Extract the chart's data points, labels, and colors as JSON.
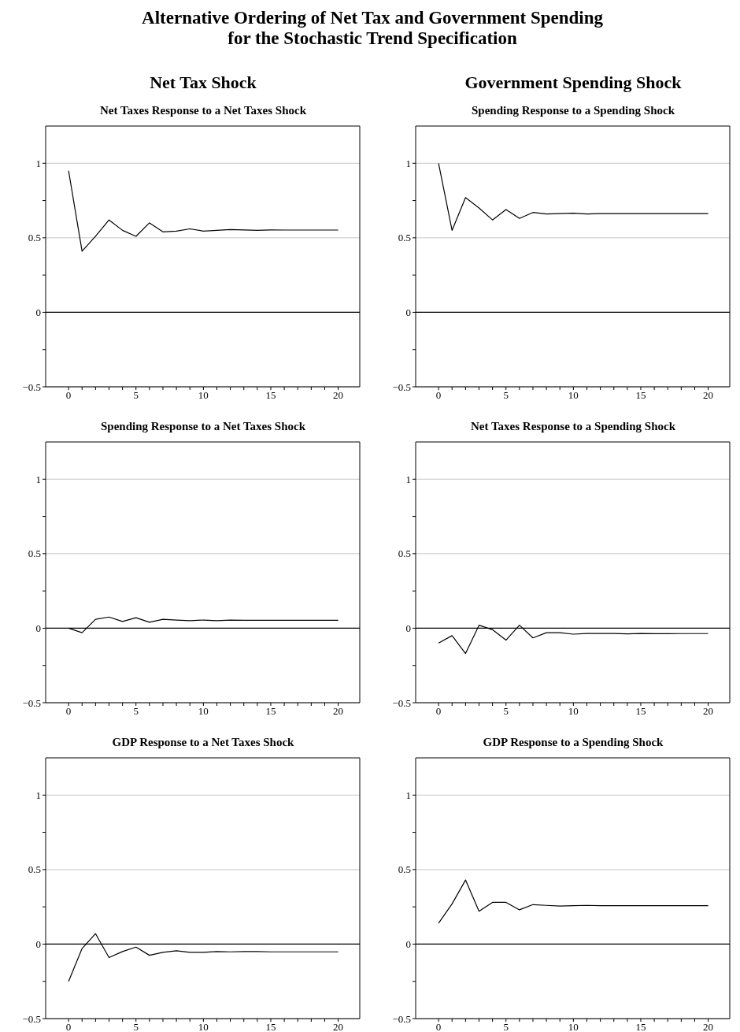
{
  "chart_data": [
    {
      "type": "line",
      "title": "Net Taxes Response to a Net Taxes Shock",
      "annotations": [
        "Alternative Ordering of Net Tax and Government Spending\nfor the Stochastic Trend Specification",
        "Net Tax Shock"
      ],
      "x": [
        0,
        1,
        2,
        3,
        4,
        5,
        6,
        7,
        8,
        9,
        10,
        11,
        12,
        13,
        14,
        15,
        16,
        17,
        18,
        19,
        20
      ],
      "series": [
        {
          "color": "#000000",
          "values": [
            0.95,
            0.41,
            0.51,
            0.62,
            0.55,
            0.51,
            0.6,
            0.54,
            0.545,
            0.56,
            0.545,
            0.55,
            0.555,
            0.553,
            0.55,
            0.553,
            0.552,
            0.552,
            0.552,
            0.552,
            0.552
          ]
        }
      ],
      "xlim": [
        -1.7,
        21.6
      ],
      "xticks": [
        0,
        {
          "value": 1,
          "label": null
        },
        {
          "value": 2,
          "label": null
        },
        {
          "value": 3,
          "label": null
        },
        {
          "value": 4,
          "label": null
        },
        5,
        {
          "value": 6,
          "label": null
        },
        {
          "value": 7,
          "label": null
        },
        {
          "value": 8,
          "label": null
        },
        {
          "value": 9,
          "label": null
        },
        10,
        {
          "value": 11,
          "label": null
        },
        {
          "value": 12,
          "label": null
        },
        {
          "value": 13,
          "label": null
        },
        {
          "value": 14,
          "label": null
        },
        15,
        {
          "value": 16,
          "label": null
        },
        {
          "value": 17,
          "label": null
        },
        {
          "value": 18,
          "label": null
        },
        {
          "value": 19,
          "label": null
        },
        20
      ],
      "ylim": [
        -0.5,
        1.25
      ],
      "yticks": [
        {
          "value": -0.5,
          "label": "−0.5"
        },
        {
          "value": -0.25,
          "label": null
        },
        0,
        {
          "value": 0.25,
          "label": null
        },
        0.5,
        {
          "value": 0.75,
          "label": null
        },
        1
      ],
      "grid": "y",
      "marker": "none",
      "line_style": "solid",
      "ref_lines": [
        {
          "axis": "y",
          "value": 0,
          "color": "#000000"
        }
      ]
    },
    {
      "type": "line",
      "title": "Spending Response to a Spending Shock",
      "annotations": [
        "Government Spending Shock"
      ],
      "x": [
        0,
        1,
        2,
        3,
        4,
        5,
        6,
        7,
        8,
        9,
        10,
        11,
        12,
        13,
        14,
        15,
        16,
        17,
        18,
        19,
        20
      ],
      "series": [
        {
          "color": "#000000",
          "values": [
            1.0,
            0.55,
            0.77,
            0.7,
            0.62,
            0.69,
            0.63,
            0.67,
            0.66,
            0.662,
            0.665,
            0.66,
            0.663,
            0.662,
            0.663,
            0.662,
            0.662,
            0.662,
            0.662,
            0.662,
            0.662
          ]
        }
      ],
      "xlim": [
        -1.7,
        21.6
      ],
      "xticks": [
        0,
        {
          "value": 1,
          "label": null
        },
        {
          "value": 2,
          "label": null
        },
        {
          "value": 3,
          "label": null
        },
        {
          "value": 4,
          "label": null
        },
        5,
        {
          "value": 6,
          "label": null
        },
        {
          "value": 7,
          "label": null
        },
        {
          "value": 8,
          "label": null
        },
        {
          "value": 9,
          "label": null
        },
        10,
        {
          "value": 11,
          "label": null
        },
        {
          "value": 12,
          "label": null
        },
        {
          "value": 13,
          "label": null
        },
        {
          "value": 14,
          "label": null
        },
        15,
        {
          "value": 16,
          "label": null
        },
        {
          "value": 17,
          "label": null
        },
        {
          "value": 18,
          "label": null
        },
        {
          "value": 19,
          "label": null
        },
        20
      ],
      "ylim": [
        -0.5,
        1.25
      ],
      "yticks": [
        {
          "value": -0.5,
          "label": "−0.5"
        },
        {
          "value": -0.25,
          "label": null
        },
        0,
        {
          "value": 0.25,
          "label": null
        },
        0.5,
        {
          "value": 0.75,
          "label": null
        },
        1
      ],
      "grid": "y",
      "marker": "none",
      "line_style": "solid",
      "ref_lines": [
        {
          "axis": "y",
          "value": 0,
          "color": "#000000"
        }
      ]
    },
    {
      "type": "line",
      "title": "Spending Response to a Net Taxes Shock",
      "x": [
        0,
        1,
        2,
        3,
        4,
        5,
        6,
        7,
        8,
        9,
        10,
        11,
        12,
        13,
        14,
        15,
        16,
        17,
        18,
        19,
        20
      ],
      "series": [
        {
          "color": "#000000",
          "values": [
            0,
            -0.03,
            0.06,
            0.075,
            0.045,
            0.07,
            0.04,
            0.06,
            0.055,
            0.05,
            0.055,
            0.05,
            0.055,
            0.053,
            0.053,
            0.053,
            0.053,
            0.053,
            0.053,
            0.053,
            0.053
          ]
        }
      ],
      "xlim": [
        -1.7,
        21.6
      ],
      "xticks": [
        0,
        {
          "value": 1,
          "label": null
        },
        {
          "value": 2,
          "label": null
        },
        {
          "value": 3,
          "label": null
        },
        {
          "value": 4,
          "label": null
        },
        5,
        {
          "value": 6,
          "label": null
        },
        {
          "value": 7,
          "label": null
        },
        {
          "value": 8,
          "label": null
        },
        {
          "value": 9,
          "label": null
        },
        10,
        {
          "value": 11,
          "label": null
        },
        {
          "value": 12,
          "label": null
        },
        {
          "value": 13,
          "label": null
        },
        {
          "value": 14,
          "label": null
        },
        15,
        {
          "value": 16,
          "label": null
        },
        {
          "value": 17,
          "label": null
        },
        {
          "value": 18,
          "label": null
        },
        {
          "value": 19,
          "label": null
        },
        20
      ],
      "ylim": [
        -0.5,
        1.25
      ],
      "yticks": [
        {
          "value": -0.5,
          "label": "−0.5"
        },
        {
          "value": -0.25,
          "label": null
        },
        0,
        {
          "value": 0.25,
          "label": null
        },
        0.5,
        {
          "value": 0.75,
          "label": null
        },
        1
      ],
      "grid": "y",
      "marker": "none",
      "line_style": "solid",
      "ref_lines": [
        {
          "axis": "y",
          "value": 0,
          "color": "#000000"
        }
      ]
    },
    {
      "type": "line",
      "title": "Net Taxes Response to a Spending Shock",
      "x": [
        0,
        1,
        2,
        3,
        4,
        5,
        6,
        7,
        8,
        9,
        10,
        11,
        12,
        13,
        14,
        15,
        16,
        17,
        18,
        19,
        20
      ],
      "series": [
        {
          "color": "#000000",
          "values": [
            -0.1,
            -0.05,
            -0.17,
            0.02,
            -0.01,
            -0.08,
            0.02,
            -0.065,
            -0.03,
            -0.03,
            -0.04,
            -0.035,
            -0.035,
            -0.035,
            -0.038,
            -0.035,
            -0.037,
            -0.037,
            -0.036,
            -0.036,
            -0.036
          ]
        }
      ],
      "xlim": [
        -1.7,
        21.6
      ],
      "xticks": [
        0,
        {
          "value": 1,
          "label": null
        },
        {
          "value": 2,
          "label": null
        },
        {
          "value": 3,
          "label": null
        },
        {
          "value": 4,
          "label": null
        },
        5,
        {
          "value": 6,
          "label": null
        },
        {
          "value": 7,
          "label": null
        },
        {
          "value": 8,
          "label": null
        },
        {
          "value": 9,
          "label": null
        },
        10,
        {
          "value": 11,
          "label": null
        },
        {
          "value": 12,
          "label": null
        },
        {
          "value": 13,
          "label": null
        },
        {
          "value": 14,
          "label": null
        },
        15,
        {
          "value": 16,
          "label": null
        },
        {
          "value": 17,
          "label": null
        },
        {
          "value": 18,
          "label": null
        },
        {
          "value": 19,
          "label": null
        },
        20
      ],
      "ylim": [
        -0.5,
        1.25
      ],
      "yticks": [
        {
          "value": -0.5,
          "label": "−0.5"
        },
        {
          "value": -0.25,
          "label": null
        },
        0,
        {
          "value": 0.25,
          "label": null
        },
        0.5,
        {
          "value": 0.75,
          "label": null
        },
        1
      ],
      "grid": "y",
      "marker": "none",
      "line_style": "solid",
      "ref_lines": [
        {
          "axis": "y",
          "value": 0,
          "color": "#000000"
        }
      ]
    },
    {
      "type": "line",
      "title": "GDP Response to a Net Taxes Shock",
      "x": [
        0,
        1,
        2,
        3,
        4,
        5,
        6,
        7,
        8,
        9,
        10,
        11,
        12,
        13,
        14,
        15,
        16,
        17,
        18,
        19,
        20
      ],
      "series": [
        {
          "color": "#000000",
          "values": [
            -0.25,
            -0.03,
            0.07,
            -0.09,
            -0.05,
            -0.02,
            -0.075,
            -0.055,
            -0.045,
            -0.055,
            -0.055,
            -0.05,
            -0.052,
            -0.05,
            -0.05,
            -0.052,
            -0.052,
            -0.052,
            -0.052,
            -0.052,
            -0.052
          ]
        }
      ],
      "xlim": [
        -1.7,
        21.6
      ],
      "xticks": [
        0,
        {
          "value": 1,
          "label": null
        },
        {
          "value": 2,
          "label": null
        },
        {
          "value": 3,
          "label": null
        },
        {
          "value": 4,
          "label": null
        },
        5,
        {
          "value": 6,
          "label": null
        },
        {
          "value": 7,
          "label": null
        },
        {
          "value": 8,
          "label": null
        },
        {
          "value": 9,
          "label": null
        },
        10,
        {
          "value": 11,
          "label": null
        },
        {
          "value": 12,
          "label": null
        },
        {
          "value": 13,
          "label": null
        },
        {
          "value": 14,
          "label": null
        },
        15,
        {
          "value": 16,
          "label": null
        },
        {
          "value": 17,
          "label": null
        },
        {
          "value": 18,
          "label": null
        },
        {
          "value": 19,
          "label": null
        },
        20
      ],
      "ylim": [
        -0.5,
        1.25
      ],
      "yticks": [
        {
          "value": -0.5,
          "label": "−0.5"
        },
        {
          "value": -0.25,
          "label": null
        },
        0,
        {
          "value": 0.25,
          "label": null
        },
        0.5,
        {
          "value": 0.75,
          "label": null
        },
        1
      ],
      "grid": "y",
      "marker": "none",
      "line_style": "solid",
      "ref_lines": [
        {
          "axis": "y",
          "value": 0,
          "color": "#000000"
        }
      ]
    },
    {
      "type": "line",
      "title": "GDP Response to a Spending Shock",
      "x": [
        0,
        1,
        2,
        3,
        4,
        5,
        6,
        7,
        8,
        9,
        10,
        11,
        12,
        13,
        14,
        15,
        16,
        17,
        18,
        19,
        20
      ],
      "series": [
        {
          "color": "#000000",
          "values": [
            0.14,
            0.27,
            0.43,
            0.22,
            0.28,
            0.28,
            0.23,
            0.265,
            0.26,
            0.255,
            0.258,
            0.26,
            0.258,
            0.258,
            0.258,
            0.258,
            0.258,
            0.258,
            0.258,
            0.258,
            0.258
          ]
        }
      ],
      "xlim": [
        -1.7,
        21.6
      ],
      "xticks": [
        0,
        {
          "value": 1,
          "label": null
        },
        {
          "value": 2,
          "label": null
        },
        {
          "value": 3,
          "label": null
        },
        {
          "value": 4,
          "label": null
        },
        5,
        {
          "value": 6,
          "label": null
        },
        {
          "value": 7,
          "label": null
        },
        {
          "value": 8,
          "label": null
        },
        {
          "value": 9,
          "label": null
        },
        10,
        {
          "value": 11,
          "label": null
        },
        {
          "value": 12,
          "label": null
        },
        {
          "value": 13,
          "label": null
        },
        {
          "value": 14,
          "label": null
        },
        15,
        {
          "value": 16,
          "label": null
        },
        {
          "value": 17,
          "label": null
        },
        {
          "value": 18,
          "label": null
        },
        {
          "value": 19,
          "label": null
        },
        20
      ],
      "ylim": [
        -0.5,
        1.25
      ],
      "yticks": [
        {
          "value": -0.5,
          "label": "−0.5"
        },
        {
          "value": -0.25,
          "label": null
        },
        0,
        {
          "value": 0.25,
          "label": null
        },
        0.5,
        {
          "value": 0.75,
          "label": null
        },
        1
      ],
      "grid": "y",
      "marker": "none",
      "line_style": "solid",
      "ref_lines": [
        {
          "axis": "y",
          "value": 0,
          "color": "#000000"
        }
      ]
    }
  ]
}
